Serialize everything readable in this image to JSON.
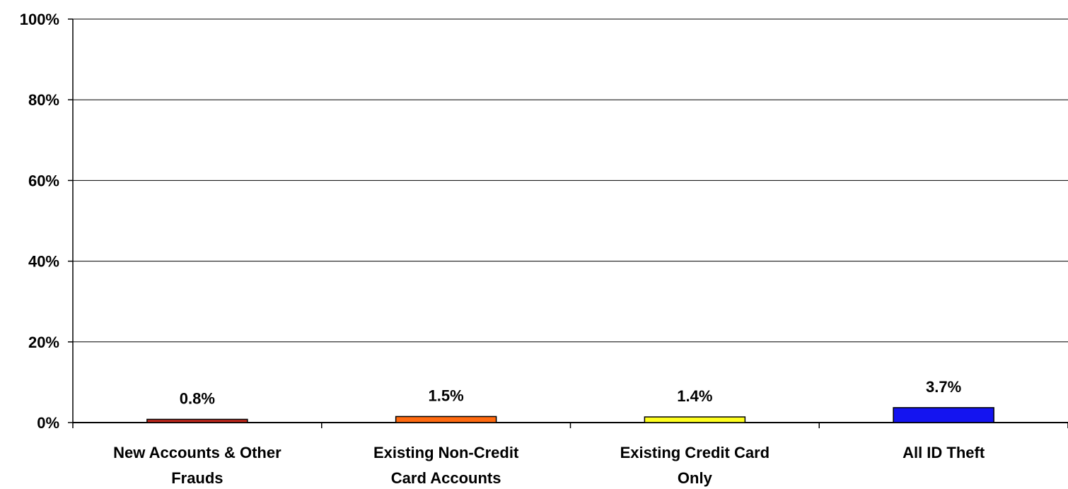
{
  "chart_data": {
    "type": "bar",
    "categories": [
      [
        "New Accounts & Other",
        "Frauds"
      ],
      [
        "Existing Non-Credit",
        "Card Accounts"
      ],
      [
        "Existing Credit Card",
        "Only"
      ],
      [
        "All ID Theft"
      ]
    ],
    "values": [
      0.8,
      1.5,
      1.4,
      3.7
    ],
    "data_labels": [
      "0.8%",
      "1.5%",
      "1.4%",
      "3.7%"
    ],
    "bar_colors": [
      "#C0281C",
      "#FF6A10",
      "#FFFF20",
      "#1414F0"
    ],
    "ylim": [
      0,
      100
    ],
    "y_ticks": [
      0,
      20,
      40,
      60,
      80,
      100
    ],
    "y_tick_labels": [
      "0%",
      "20%",
      "40%",
      "60%",
      "80%",
      "100%"
    ],
    "grid": true,
    "legend": "none",
    "title": "",
    "xlabel": "",
    "ylabel": ""
  }
}
